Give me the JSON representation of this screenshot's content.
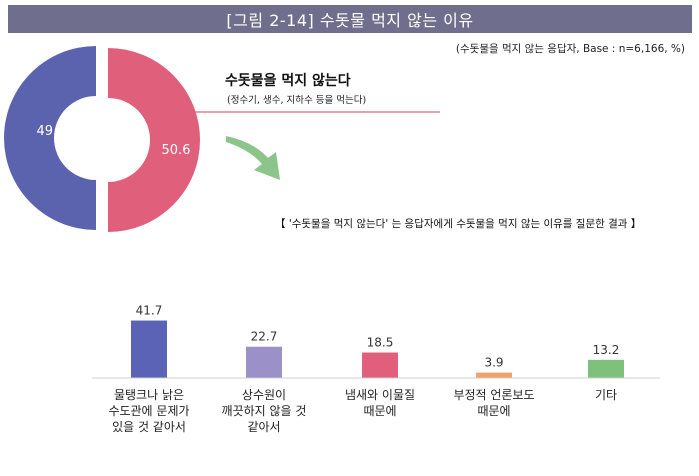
{
  "header": {
    "title": "[그림 2-14] 수돗물 먹지 않는 이유",
    "base_note": "(수돗물을 먹지 않는 응답자, Base : n=6,166, %)"
  },
  "donut": {
    "main_label": "수돗물을 먹지 않는다",
    "sub_label": "(정수기, 생수, 지하수 등을 먹는다)",
    "note": "【 '수돗물을 먹지 않는다' 는 응답자에게 수돗물을 먹지 않는 이유를 질문한 결과 】"
  },
  "chart_data": [
    {
      "type": "pie",
      "labels": [
        "",
        ""
      ],
      "values": [
        49.4,
        50.6
      ],
      "value_labels": [
        "49.4",
        "50.6"
      ],
      "colors": [
        "#5b63ae",
        "#e0607c"
      ]
    },
    {
      "type": "bar",
      "categories": [
        "물탱크나 낡은 수도관에 문제가 있을 것 같아서",
        "상수원이 깨끗하지 않을 것 같아서",
        "냄새와 이물질 때문에",
        "부정적 언론보도 때문에",
        "기타"
      ],
      "category_lines": [
        [
          "물탱크나 낡은",
          "수도관에 문제가",
          "있을 것 같아서"
        ],
        [
          "상수원이",
          "깨끗하지 않을 것",
          "같아서"
        ],
        [
          "냄새와 이물질",
          "때문에"
        ],
        [
          "부정적 언론보도",
          "때문에"
        ],
        [
          "기타"
        ]
      ],
      "values": [
        41.7,
        22.7,
        18.5,
        3.9,
        13.2
      ],
      "value_labels": [
        "41.7",
        "22.7",
        "18.5",
        "3.9",
        "13.2"
      ],
      "colors": [
        "#5a63b6",
        "#9b90c8",
        "#e0607c",
        "#f3a16b",
        "#7fc17c"
      ],
      "ylim": [
        0,
        45
      ]
    }
  ]
}
